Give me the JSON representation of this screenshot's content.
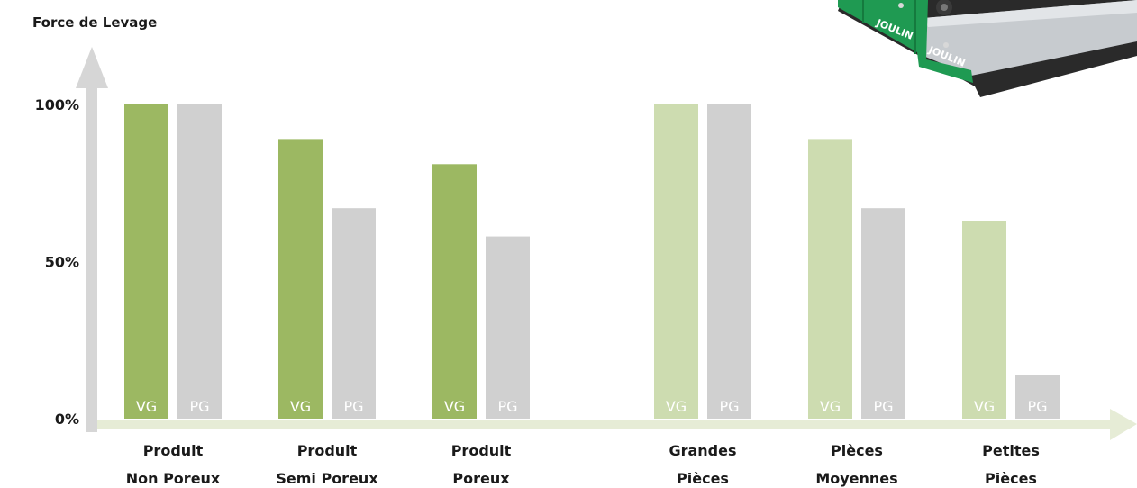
{
  "chart_data": {
    "type": "bar",
    "ylabel": "Force de Levage",
    "ylim": [
      0,
      100
    ],
    "yticks": [
      {
        "value": 0,
        "label": "0%"
      },
      {
        "value": 50,
        "label": "50%"
      },
      {
        "value": 100,
        "label": "100%"
      }
    ],
    "series_labels": [
      "VG",
      "PG"
    ],
    "groups": [
      {
        "line1": "Produit",
        "line2": "Non Poreux",
        "values": [
          100,
          100
        ],
        "shade": "dark"
      },
      {
        "line1": "Produit",
        "line2": "Semi Poreux",
        "values": [
          89,
          67
        ],
        "shade": "dark"
      },
      {
        "line1": "Produit",
        "line2": "Poreux",
        "values": [
          81,
          58
        ],
        "shade": "dark"
      },
      {
        "line1": "Grandes",
        "line2": "Pièces",
        "values": [
          100,
          100
        ],
        "shade": "light"
      },
      {
        "line1": "Pièces",
        "line2": "Moyennes",
        "values": [
          89,
          67
        ],
        "shade": "light"
      },
      {
        "line1": "Petites",
        "line2": "Pièces",
        "values": [
          63,
          14
        ],
        "shade": "light"
      }
    ],
    "colors": {
      "vg_dark": "#9cb862",
      "vg_light": "#cddcb0",
      "pg": "#d0d0d0",
      "y_axis": "#d6d6d6",
      "x_axis": "#e6ecd6"
    }
  },
  "product_image": {
    "brand_label": "JOULIN"
  }
}
